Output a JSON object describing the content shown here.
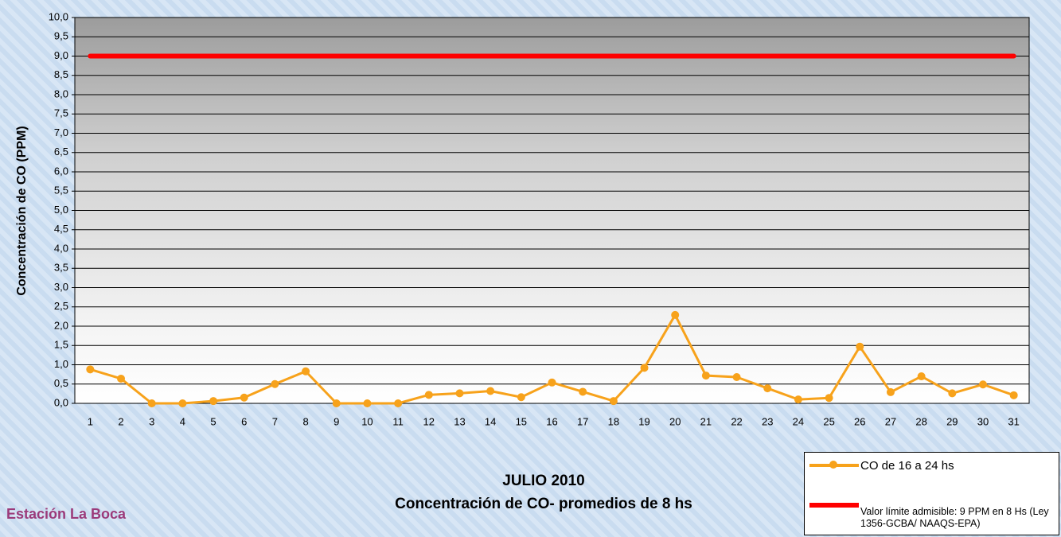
{
  "chart_data": {
    "type": "line",
    "title": "JULIO 2010",
    "subtitle": "Concentración de CO- promedios de 8 hs",
    "annotation": "Estación La Boca",
    "y_label": "Concentración de CO (PPM)",
    "categories": [
      "1",
      "2",
      "3",
      "4",
      "5",
      "6",
      "7",
      "8",
      "9",
      "10",
      "11",
      "12",
      "13",
      "14",
      "15",
      "16",
      "17",
      "18",
      "19",
      "20",
      "21",
      "22",
      "23",
      "24",
      "25",
      "26",
      "27",
      "28",
      "29",
      "30",
      "31"
    ],
    "series": [
      {
        "name": "CO de 16 a 24 hs",
        "color": "#f7a21b",
        "markers": true,
        "values": [
          0.88,
          0.64,
          0,
          0,
          0.06,
          0.15,
          0.5,
          0.83,
          0,
          0,
          0,
          0.22,
          0.26,
          0.32,
          0.16,
          0.54,
          0.3,
          0.06,
          0.92,
          2.29,
          0.72,
          0.68,
          0.39,
          0.1,
          0.14,
          1.47,
          0.29,
          0.7,
          0.26,
          0.49,
          0.21
        ]
      },
      {
        "name": "Valor límite admisible: 9 PPM en 8 Hs (Ley 1356-GCBA/ NAAQS-EPA)",
        "color": "#ff0000",
        "markers": false,
        "values": [
          9,
          9,
          9,
          9,
          9,
          9,
          9,
          9,
          9,
          9,
          9,
          9,
          9,
          9,
          9,
          9,
          9,
          9,
          9,
          9,
          9,
          9,
          9,
          9,
          9,
          9,
          9,
          9,
          9,
          9,
          9
        ]
      }
    ],
    "ylim": [
      0,
      10
    ],
    "yticks": [
      {
        "value": 0,
        "label": "0,0"
      },
      {
        "value": 0.5,
        "label": "0,5"
      },
      {
        "value": 1,
        "label": "1,0"
      },
      {
        "value": 1.5,
        "label": "1,5"
      },
      {
        "value": 2,
        "label": "2,0"
      },
      {
        "value": 2.5,
        "label": "2,5"
      },
      {
        "value": 3,
        "label": "3,0"
      },
      {
        "value": 3.5,
        "label": "3,5"
      },
      {
        "value": 4,
        "label": "4,0"
      },
      {
        "value": 4.5,
        "label": "4,5"
      },
      {
        "value": 5,
        "label": "5,0"
      },
      {
        "value": 5.5,
        "label": "5,5"
      },
      {
        "value": 6,
        "label": "6,0"
      },
      {
        "value": 6.5,
        "label": "6,5"
      },
      {
        "value": 7,
        "label": "7,0"
      },
      {
        "value": 7.5,
        "label": "7,5"
      },
      {
        "value": 8,
        "label": "8,0"
      },
      {
        "value": 8.5,
        "label": "8,5"
      },
      {
        "value": 9,
        "label": "9,0"
      },
      {
        "value": 9.5,
        "label": "9,5"
      },
      {
        "value": 10,
        "label": "10,0"
      }
    ],
    "grid": true
  }
}
